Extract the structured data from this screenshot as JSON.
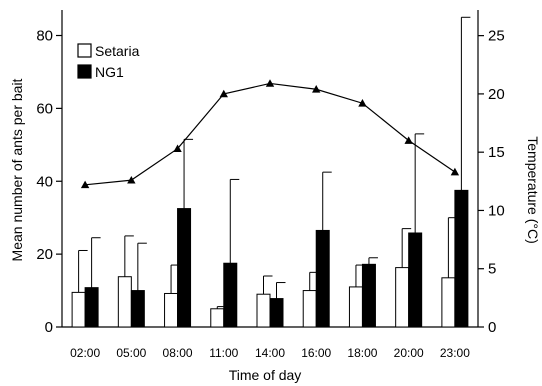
{
  "chart_data": {
    "type": "bar",
    "categories": [
      "02:00",
      "05:00",
      "08:00",
      "11:00",
      "14:00",
      "16:00",
      "18:00",
      "20:00",
      "23:00"
    ],
    "xlabel": "Time of  day",
    "ylabel": "Mean number of ants per bait",
    "y2label": "Temperature (°C)",
    "ylim": [
      0,
      87
    ],
    "y2lim": [
      0,
      27.2
    ],
    "yticks": [
      0,
      20,
      40,
      60,
      80
    ],
    "y2ticks": [
      0,
      5,
      10,
      15,
      20,
      25
    ],
    "series": [
      {
        "name": "Setaria",
        "color": "#ffffff",
        "values": [
          9.5,
          13.8,
          9.2,
          5.0,
          9.0,
          10.0,
          11.0,
          16.3,
          13.5
        ],
        "error_upper": [
          21.0,
          25.0,
          17.0,
          5.6,
          14.0,
          15.0,
          17.0,
          27.0,
          30.0
        ]
      },
      {
        "name": "NG1",
        "color": "#000000",
        "values": [
          10.8,
          10.0,
          32.5,
          17.5,
          7.8,
          26.5,
          17.2,
          25.8,
          37.5
        ],
        "error_upper": [
          24.5,
          23.0,
          51.5,
          40.5,
          12.2,
          42.5,
          19.0,
          53.0,
          85.0
        ]
      }
    ],
    "temperature": {
      "name": "Temperature",
      "values": [
        12.2,
        12.6,
        15.3,
        20.0,
        20.9,
        20.4,
        19.2,
        16.0,
        13.3
      ]
    },
    "legend": {
      "placement": "top-left"
    },
    "grid": false
  }
}
